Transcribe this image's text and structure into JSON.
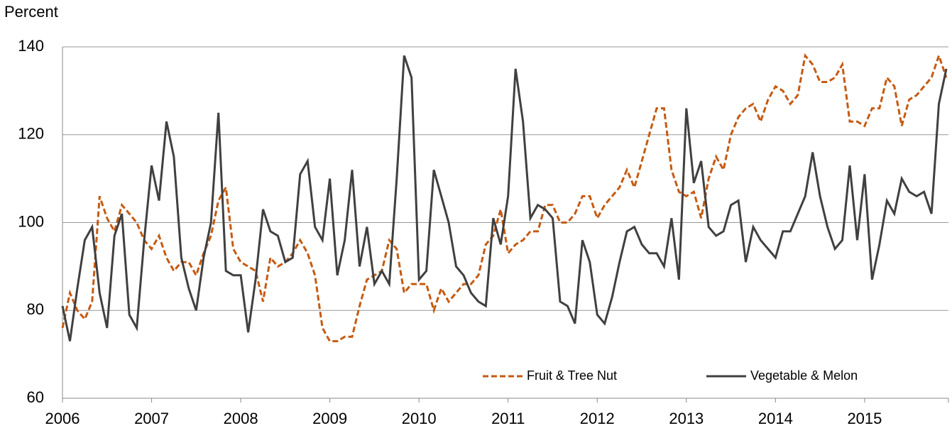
{
  "chart_data": {
    "type": "line",
    "y_axis_label": "Percent",
    "categories": [
      "2006",
      null,
      null,
      null,
      null,
      null,
      null,
      null,
      null,
      null,
      null,
      null,
      "2007",
      null,
      null,
      null,
      null,
      null,
      null,
      null,
      null,
      null,
      null,
      null,
      "2008",
      null,
      null,
      null,
      null,
      null,
      null,
      null,
      null,
      null,
      null,
      null,
      "2009",
      null,
      null,
      null,
      null,
      null,
      null,
      null,
      null,
      null,
      null,
      null,
      "2010",
      null,
      null,
      null,
      null,
      null,
      null,
      null,
      null,
      null,
      null,
      null,
      "2011",
      null,
      null,
      null,
      null,
      null,
      null,
      null,
      null,
      null,
      null,
      null,
      "2012",
      null,
      null,
      null,
      null,
      null,
      null,
      null,
      null,
      null,
      null,
      null,
      "2013",
      null,
      null,
      null,
      null,
      null,
      null,
      null,
      null,
      null,
      null,
      null,
      "2014",
      null,
      null,
      null,
      null,
      null,
      null,
      null,
      null,
      null,
      null,
      null,
      "2015",
      null,
      null,
      null,
      null,
      null,
      null,
      null,
      null,
      null,
      null,
      null
    ],
    "series": [
      {
        "name": "Fruit & Tree Nut",
        "color": "#c55a11",
        "dashed": true,
        "values": [
          76,
          84,
          80,
          78,
          82,
          106,
          101,
          98,
          104,
          102,
          100,
          96,
          94,
          97,
          92,
          89,
          91,
          91,
          88,
          93,
          97,
          105,
          108,
          94,
          91,
          90,
          89,
          82,
          92,
          90,
          91,
          93,
          96,
          93,
          88,
          76,
          73,
          73,
          74,
          74,
          81,
          87,
          88,
          89,
          96,
          94,
          84,
          86,
          86,
          86,
          80,
          85,
          82,
          84,
          86,
          86,
          88,
          95,
          97,
          103,
          93,
          95,
          96,
          98,
          98,
          104,
          104,
          100,
          100,
          102,
          106,
          106,
          101,
          104,
          106,
          108,
          112,
          108,
          114,
          120,
          126,
          126,
          112,
          107,
          106,
          107,
          101,
          110,
          115,
          112,
          120,
          124,
          126,
          127,
          123,
          128,
          131,
          130,
          127,
          129,
          138,
          136,
          132,
          132,
          133,
          136,
          123,
          123,
          122,
          126,
          126,
          133,
          131,
          122,
          128,
          129,
          131,
          133,
          138,
          133
        ]
      },
      {
        "name": "Vegetable & Melon",
        "color": "#404040",
        "dashed": false,
        "values": [
          81,
          73,
          85,
          96,
          99,
          84,
          76,
          97,
          102,
          79,
          76,
          96,
          113,
          105,
          123,
          115,
          92,
          85,
          80,
          92,
          100,
          125,
          89,
          88,
          88,
          75,
          87,
          103,
          98,
          97,
          91,
          92,
          111,
          114,
          99,
          96,
          110,
          88,
          96,
          112,
          90,
          99,
          86,
          89,
          86,
          110,
          138,
          133,
          87,
          89,
          112,
          106,
          100,
          90,
          88,
          84,
          82,
          81,
          101,
          95,
          106,
          135,
          123,
          101,
          104,
          103,
          101,
          82,
          81,
          77,
          96,
          91,
          79,
          77,
          83,
          91,
          98,
          99,
          95,
          93,
          93,
          90,
          101,
          87,
          126,
          109,
          114,
          99,
          97,
          98,
          104,
          105,
          91,
          99,
          96,
          94,
          92,
          98,
          98,
          102,
          106,
          116,
          106,
          99,
          94,
          96,
          113,
          96,
          111,
          87,
          95,
          105,
          102,
          110,
          107,
          106,
          107,
          102,
          127,
          135
        ]
      }
    ],
    "ylim": [
      60,
      140
    ],
    "yticks": [
      60,
      80,
      100,
      120,
      140
    ],
    "grid": true,
    "legend": "bottom-right"
  }
}
